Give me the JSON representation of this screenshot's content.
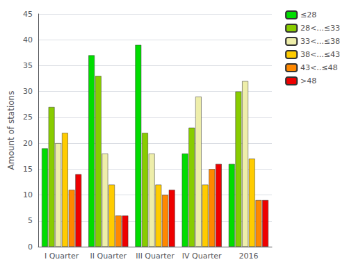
{
  "chart_data": {
    "type": "bar",
    "categories": [
      "I Quarter",
      "II Quarter",
      "III Quarter",
      "IV Quarter",
      "2016"
    ],
    "series": [
      {
        "name": "≤28",
        "color": "#00dd00",
        "values": [
          19,
          37,
          39,
          18,
          16
        ]
      },
      {
        "name": "28<...≤33",
        "color": "#88cc00",
        "values": [
          27,
          33,
          22,
          23,
          30
        ]
      },
      {
        "name": "33<...≤38",
        "color": "#eeeeaa",
        "values": [
          20,
          18,
          18,
          29,
          32
        ]
      },
      {
        "name": "38<...≤43",
        "color": "#ffcc00",
        "values": [
          22,
          12,
          12,
          12,
          17
        ]
      },
      {
        "name": "43<..≤48",
        "color": "#ff8800",
        "values": [
          11,
          6,
          10,
          15,
          9
        ]
      },
      {
        "name": ">48",
        "color": "#ee0000",
        "values": [
          14,
          6,
          11,
          16,
          9
        ]
      }
    ],
    "ylabel": "Amount of stations",
    "ylim": [
      0,
      45
    ],
    "yticks": [
      0,
      5,
      10,
      15,
      20,
      25,
      30,
      35,
      40,
      45
    ],
    "grid": true,
    "legend": "upper right"
  }
}
